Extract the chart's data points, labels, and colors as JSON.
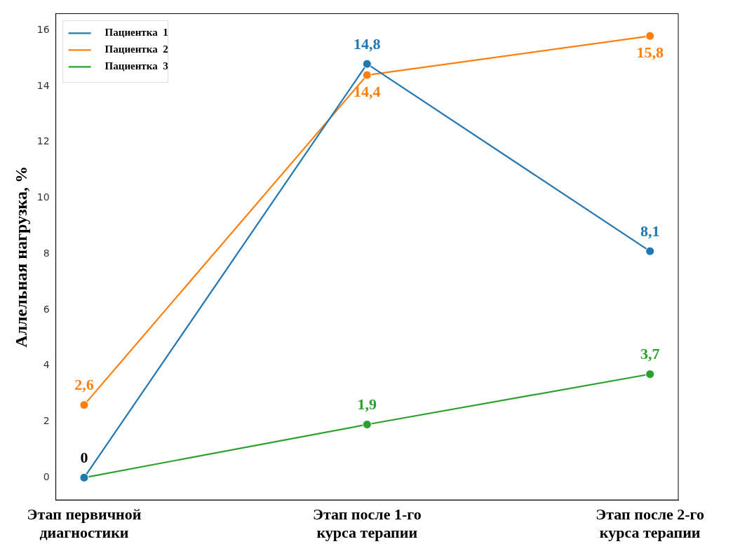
{
  "chart_data": {
    "type": "line",
    "ylabel": "Аллельная нагрузка, %",
    "categories": [
      "Этап первичной диагностики",
      "Этап после 1-го курса терапии",
      "Этап после 2-го курса терапии"
    ],
    "series": [
      {
        "name": "Пациентка  1",
        "color": "#1f77b4",
        "values": [
          0,
          14.8,
          8.1
        ],
        "value_labels": [
          null,
          "14,8",
          "8,1"
        ]
      },
      {
        "name": "Пациентка  2",
        "color": "#ff7f0e",
        "values": [
          2.6,
          14.4,
          15.8
        ],
        "value_labels": [
          "2,6",
          "14,4",
          "15,8"
        ]
      },
      {
        "name": "Пациентка  3",
        "color": "#2ca02c",
        "values": [
          0,
          1.9,
          3.7
        ],
        "value_labels": [
          null,
          "1,9",
          "3,7"
        ]
      }
    ],
    "annotations": [
      {
        "text": "0",
        "x": "Этап первичной диагностики",
        "y": 0
      }
    ],
    "ylim": [
      -0.8,
      16.6
    ],
    "yticks": [
      0,
      2,
      4,
      6,
      8,
      10,
      12,
      14,
      16
    ],
    "grid": false,
    "legend": "top left",
    "marker": "circle",
    "line_style": "solid"
  }
}
